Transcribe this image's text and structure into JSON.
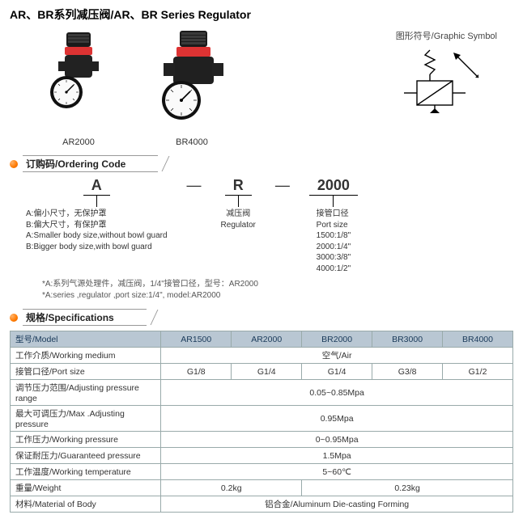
{
  "title": "AR、BR系列减压阀/AR、BR Series Regulator",
  "products": {
    "a": "AR2000",
    "b": "BR4000"
  },
  "schematic_label": "图形符号/Graphic Symbol",
  "section_ordering": "订购码/Ordering Code",
  "ordering": {
    "box1": "A",
    "box2": "R",
    "box3": "2000",
    "dash": "—",
    "desc1": "A:偏小尺寸，无保护罩\nB:偏大尺寸，有保护罩\nA:Smaller body size,without bowl guard\nB:Bigger body size,with bowl guard",
    "desc2": "减压阀\nRegulator",
    "desc3": "接管口径\nPort size\n1500:1/8\"\n2000:1/4\"\n3000:3/8\"\n4000:1/2\"",
    "footnote": "*A:系列气源处理件，减压阀，1/4\"接管口径，型号：AR2000\n*A:series ,regulator ,port size:1/4\", model:AR2000"
  },
  "section_spec": "规格/Specifications",
  "spec": {
    "head": [
      "型号/Model",
      "AR1500",
      "AR2000",
      "BR2000",
      "BR3000",
      "BR4000"
    ],
    "rows": [
      {
        "label": "工作介质/Working medium",
        "cells": [
          {
            "text": "空气/Air",
            "span": 5
          }
        ]
      },
      {
        "label": "接管口径/Port size",
        "cells": [
          {
            "text": "G1/8",
            "span": 1
          },
          {
            "text": "G1/4",
            "span": 1
          },
          {
            "text": "G1/4",
            "span": 1
          },
          {
            "text": "G3/8",
            "span": 1
          },
          {
            "text": "G1/2",
            "span": 1
          }
        ]
      },
      {
        "label": "调节压力范围/Adjusting pressure range",
        "cells": [
          {
            "text": "0.05~0.85Mpa",
            "span": 5
          }
        ]
      },
      {
        "label": "最大可调压力/Max .Adjusting pressure",
        "cells": [
          {
            "text": "0.95Mpa",
            "span": 5
          }
        ]
      },
      {
        "label": "工作压力/Working pressure",
        "cells": [
          {
            "text": "0~0.95Mpa",
            "span": 5
          }
        ]
      },
      {
        "label": "保证耐压力/Guaranteed pressure",
        "cells": [
          {
            "text": "1.5Mpa",
            "span": 5
          }
        ]
      },
      {
        "label": "工作温度/Working temperature",
        "cells": [
          {
            "text": "5~60℃",
            "span": 5
          }
        ]
      },
      {
        "label": "重量/Weight",
        "cells": [
          {
            "text": "0.2kg",
            "span": 2
          },
          {
            "text": "0.23kg",
            "span": 3
          }
        ]
      },
      {
        "label": "材料/Material of Body",
        "cells": [
          {
            "text": "铝合金/Aluminum Die-casting Forming",
            "span": 5
          }
        ]
      }
    ]
  },
  "colors": {
    "header_bg": "#b9c7d3",
    "border": "#9aa",
    "bullet": "#ff7a00"
  }
}
